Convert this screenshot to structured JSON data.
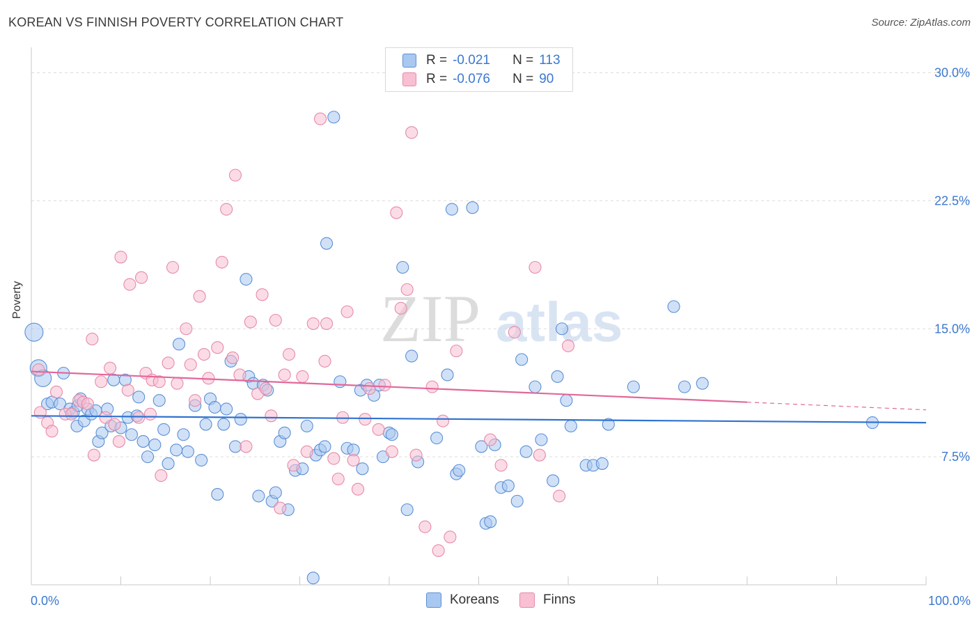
{
  "title": "KOREAN VS FINNISH POVERTY CORRELATION CHART",
  "source": "Source: ZipAtlas.com",
  "watermark": {
    "zip": "ZIP",
    "atlas": "atlas"
  },
  "legend_top": [
    {
      "r_label": "R =",
      "r_value": "-0.021",
      "n_label": "N =",
      "n_value": "113",
      "color": "#a9c8f0",
      "border": "#5b8fd6"
    },
    {
      "r_label": "R =",
      "r_value": "-0.076",
      "n_label": "N =",
      "n_value": "90",
      "color": "#f8c0d2",
      "border": "#e68aa8"
    }
  ],
  "legend_bottom": [
    {
      "label": "Koreans",
      "color": "#a9c8f0",
      "border": "#5b8fd6"
    },
    {
      "label": "Finns",
      "color": "#f8c0d2",
      "border": "#e68aa8"
    }
  ],
  "x_axis": {
    "min_label": "0.0%",
    "max_label": "100.0%"
  },
  "chart_data": {
    "type": "scatter",
    "title": "KOREAN VS FINNISH POVERTY CORRELATION CHART",
    "xlabel": "",
    "ylabel": "Poverty",
    "xlim": [
      0,
      100
    ],
    "ylim": [
      0,
      31
    ],
    "y_ticks": [
      7.5,
      15.0,
      22.5,
      30.0
    ],
    "y_tick_labels": [
      "7.5%",
      "15.0%",
      "22.5%",
      "30.0%"
    ],
    "x_tick_labels": [
      "0.0%",
      "100.0%"
    ],
    "grid": "horizontal dashed",
    "legend_position": "top-center",
    "series": [
      {
        "name": "Koreans",
        "color": "#5b8fd6",
        "fill": "#a9c8f0",
        "trend": {
          "x": [
            0,
            100
          ],
          "y": [
            9.9,
            9.5
          ]
        },
        "points": [
          [
            0.3,
            14.8
          ],
          [
            0.8,
            12.7
          ],
          [
            1.3,
            12.1
          ],
          [
            1.8,
            10.6
          ],
          [
            2.3,
            10.7
          ],
          [
            3.2,
            10.6
          ],
          [
            3.6,
            12.4
          ],
          [
            4.3,
            10.3
          ],
          [
            4.7,
            10.1
          ],
          [
            5.1,
            9.3
          ],
          [
            5.2,
            10.5
          ],
          [
            5.5,
            10.9
          ],
          [
            5.9,
            9.6
          ],
          [
            6.3,
            10.3
          ],
          [
            6.7,
            10.0
          ],
          [
            7.2,
            10.2
          ],
          [
            7.5,
            8.4
          ],
          [
            7.9,
            8.9
          ],
          [
            8.5,
            10.3
          ],
          [
            8.9,
            9.3
          ],
          [
            9.2,
            12.0
          ],
          [
            10.0,
            9.2
          ],
          [
            10.5,
            12.0
          ],
          [
            10.8,
            9.8
          ],
          [
            11.2,
            8.8
          ],
          [
            11.8,
            9.9
          ],
          [
            12.0,
            11.0
          ],
          [
            12.5,
            8.4
          ],
          [
            13.0,
            7.5
          ],
          [
            13.8,
            8.2
          ],
          [
            14.3,
            10.8
          ],
          [
            14.8,
            9.1
          ],
          [
            15.3,
            7.1
          ],
          [
            16.2,
            7.9
          ],
          [
            16.5,
            14.1
          ],
          [
            17.0,
            8.8
          ],
          [
            17.5,
            7.8
          ],
          [
            18.3,
            10.5
          ],
          [
            19.0,
            7.3
          ],
          [
            19.5,
            9.4
          ],
          [
            20.0,
            10.9
          ],
          [
            20.5,
            10.4
          ],
          [
            20.8,
            5.3
          ],
          [
            21.5,
            9.4
          ],
          [
            21.8,
            10.3
          ],
          [
            22.3,
            13.1
          ],
          [
            22.8,
            8.1
          ],
          [
            23.4,
            9.7
          ],
          [
            24.0,
            17.9
          ],
          [
            24.3,
            12.2
          ],
          [
            24.8,
            11.8
          ],
          [
            25.4,
            5.2
          ],
          [
            25.9,
            11.7
          ],
          [
            26.4,
            11.4
          ],
          [
            26.9,
            4.9
          ],
          [
            27.3,
            5.4
          ],
          [
            27.8,
            8.4
          ],
          [
            28.3,
            8.9
          ],
          [
            28.7,
            4.4
          ],
          [
            29.5,
            6.7
          ],
          [
            30.3,
            6.8
          ],
          [
            30.8,
            9.3
          ],
          [
            31.5,
            0.4
          ],
          [
            31.8,
            7.6
          ],
          [
            32.3,
            7.9
          ],
          [
            32.8,
            8.1
          ],
          [
            33.0,
            20.0
          ],
          [
            33.8,
            27.4
          ],
          [
            34.5,
            11.9
          ],
          [
            35.3,
            8.0
          ],
          [
            36.0,
            7.9
          ],
          [
            36.8,
            11.4
          ],
          [
            37.0,
            6.8
          ],
          [
            37.5,
            11.7
          ],
          [
            38.3,
            11.1
          ],
          [
            38.9,
            11.7
          ],
          [
            39.3,
            7.5
          ],
          [
            40.0,
            8.9
          ],
          [
            40.3,
            8.8
          ],
          [
            41.5,
            18.6
          ],
          [
            42.0,
            4.4
          ],
          [
            42.5,
            13.4
          ],
          [
            43.2,
            7.2
          ],
          [
            45.3,
            8.6
          ],
          [
            46.5,
            12.3
          ],
          [
            47.0,
            22.0
          ],
          [
            47.5,
            6.5
          ],
          [
            47.8,
            6.7
          ],
          [
            49.3,
            22.1
          ],
          [
            50.3,
            8.1
          ],
          [
            50.8,
            3.6
          ],
          [
            51.3,
            3.7
          ],
          [
            51.8,
            8.2
          ],
          [
            52.5,
            5.7
          ],
          [
            53.3,
            5.8
          ],
          [
            54.3,
            4.9
          ],
          [
            54.8,
            13.2
          ],
          [
            55.3,
            7.8
          ],
          [
            56.3,
            11.6
          ],
          [
            57.0,
            8.5
          ],
          [
            58.3,
            6.1
          ],
          [
            58.8,
            12.2
          ],
          [
            59.3,
            15.0
          ],
          [
            59.8,
            10.8
          ],
          [
            60.3,
            9.3
          ],
          [
            62.0,
            7.0
          ],
          [
            62.8,
            7.0
          ],
          [
            63.8,
            7.1
          ],
          [
            64.5,
            9.4
          ],
          [
            67.3,
            11.6
          ],
          [
            71.8,
            16.3
          ],
          [
            73.0,
            11.6
          ],
          [
            75.0,
            11.8
          ],
          [
            94.0,
            9.5
          ]
        ]
      },
      {
        "name": "Finns",
        "color": "#e68aa8",
        "fill": "#f8c0d2",
        "trend": {
          "x": [
            0,
            80
          ],
          "y": [
            12.5,
            10.7
          ]
        },
        "points": [
          [
            0.8,
            12.6
          ],
          [
            1.0,
            10.1
          ],
          [
            1.8,
            9.5
          ],
          [
            2.3,
            9.0
          ],
          [
            2.8,
            11.3
          ],
          [
            3.8,
            10.0
          ],
          [
            4.5,
            10.0
          ],
          [
            5.3,
            10.8
          ],
          [
            5.8,
            10.7
          ],
          [
            6.3,
            10.6
          ],
          [
            6.8,
            14.4
          ],
          [
            7.0,
            7.6
          ],
          [
            7.8,
            11.9
          ],
          [
            8.3,
            9.8
          ],
          [
            8.8,
            12.7
          ],
          [
            9.3,
            9.4
          ],
          [
            9.8,
            8.4
          ],
          [
            10.0,
            19.2
          ],
          [
            10.8,
            11.4
          ],
          [
            11.0,
            17.6
          ],
          [
            12.0,
            9.8
          ],
          [
            12.3,
            18.0
          ],
          [
            12.8,
            12.4
          ],
          [
            13.3,
            10.0
          ],
          [
            13.5,
            12.0
          ],
          [
            14.3,
            11.9
          ],
          [
            14.5,
            6.4
          ],
          [
            15.3,
            13.0
          ],
          [
            15.8,
            18.6
          ],
          [
            16.3,
            11.8
          ],
          [
            17.3,
            15.0
          ],
          [
            17.8,
            12.9
          ],
          [
            18.3,
            10.8
          ],
          [
            18.8,
            16.9
          ],
          [
            19.3,
            13.5
          ],
          [
            19.8,
            12.1
          ],
          [
            20.8,
            13.9
          ],
          [
            21.3,
            18.9
          ],
          [
            21.8,
            22.0
          ],
          [
            22.5,
            13.3
          ],
          [
            22.8,
            24.0
          ],
          [
            23.3,
            12.3
          ],
          [
            24.0,
            8.1
          ],
          [
            24.5,
            15.4
          ],
          [
            25.3,
            11.2
          ],
          [
            25.8,
            17.0
          ],
          [
            26.2,
            11.5
          ],
          [
            26.8,
            9.9
          ],
          [
            27.3,
            15.5
          ],
          [
            27.8,
            4.5
          ],
          [
            28.3,
            12.3
          ],
          [
            28.8,
            13.5
          ],
          [
            29.3,
            7.0
          ],
          [
            30.3,
            12.2
          ],
          [
            30.8,
            7.8
          ],
          [
            31.5,
            15.3
          ],
          [
            32.3,
            27.3
          ],
          [
            32.8,
            13.1
          ],
          [
            33.0,
            15.3
          ],
          [
            33.8,
            7.4
          ],
          [
            34.3,
            6.2
          ],
          [
            34.8,
            9.8
          ],
          [
            35.3,
            16.0
          ],
          [
            36.0,
            7.3
          ],
          [
            36.5,
            5.6
          ],
          [
            37.3,
            9.7
          ],
          [
            37.8,
            11.5
          ],
          [
            38.8,
            9.1
          ],
          [
            39.5,
            11.7
          ],
          [
            40.3,
            7.8
          ],
          [
            40.8,
            21.8
          ],
          [
            41.3,
            16.2
          ],
          [
            42.0,
            17.3
          ],
          [
            42.5,
            26.5
          ],
          [
            43.0,
            7.6
          ],
          [
            44.0,
            3.4
          ],
          [
            44.8,
            11.6
          ],
          [
            45.5,
            2.0
          ],
          [
            46.0,
            9.6
          ],
          [
            46.8,
            2.8
          ],
          [
            47.5,
            13.7
          ],
          [
            51.3,
            8.5
          ],
          [
            52.5,
            7.0
          ],
          [
            54.0,
            14.8
          ],
          [
            56.3,
            18.6
          ],
          [
            56.8,
            7.6
          ],
          [
            59.0,
            5.2
          ],
          [
            60.0,
            14.0
          ]
        ]
      }
    ]
  }
}
